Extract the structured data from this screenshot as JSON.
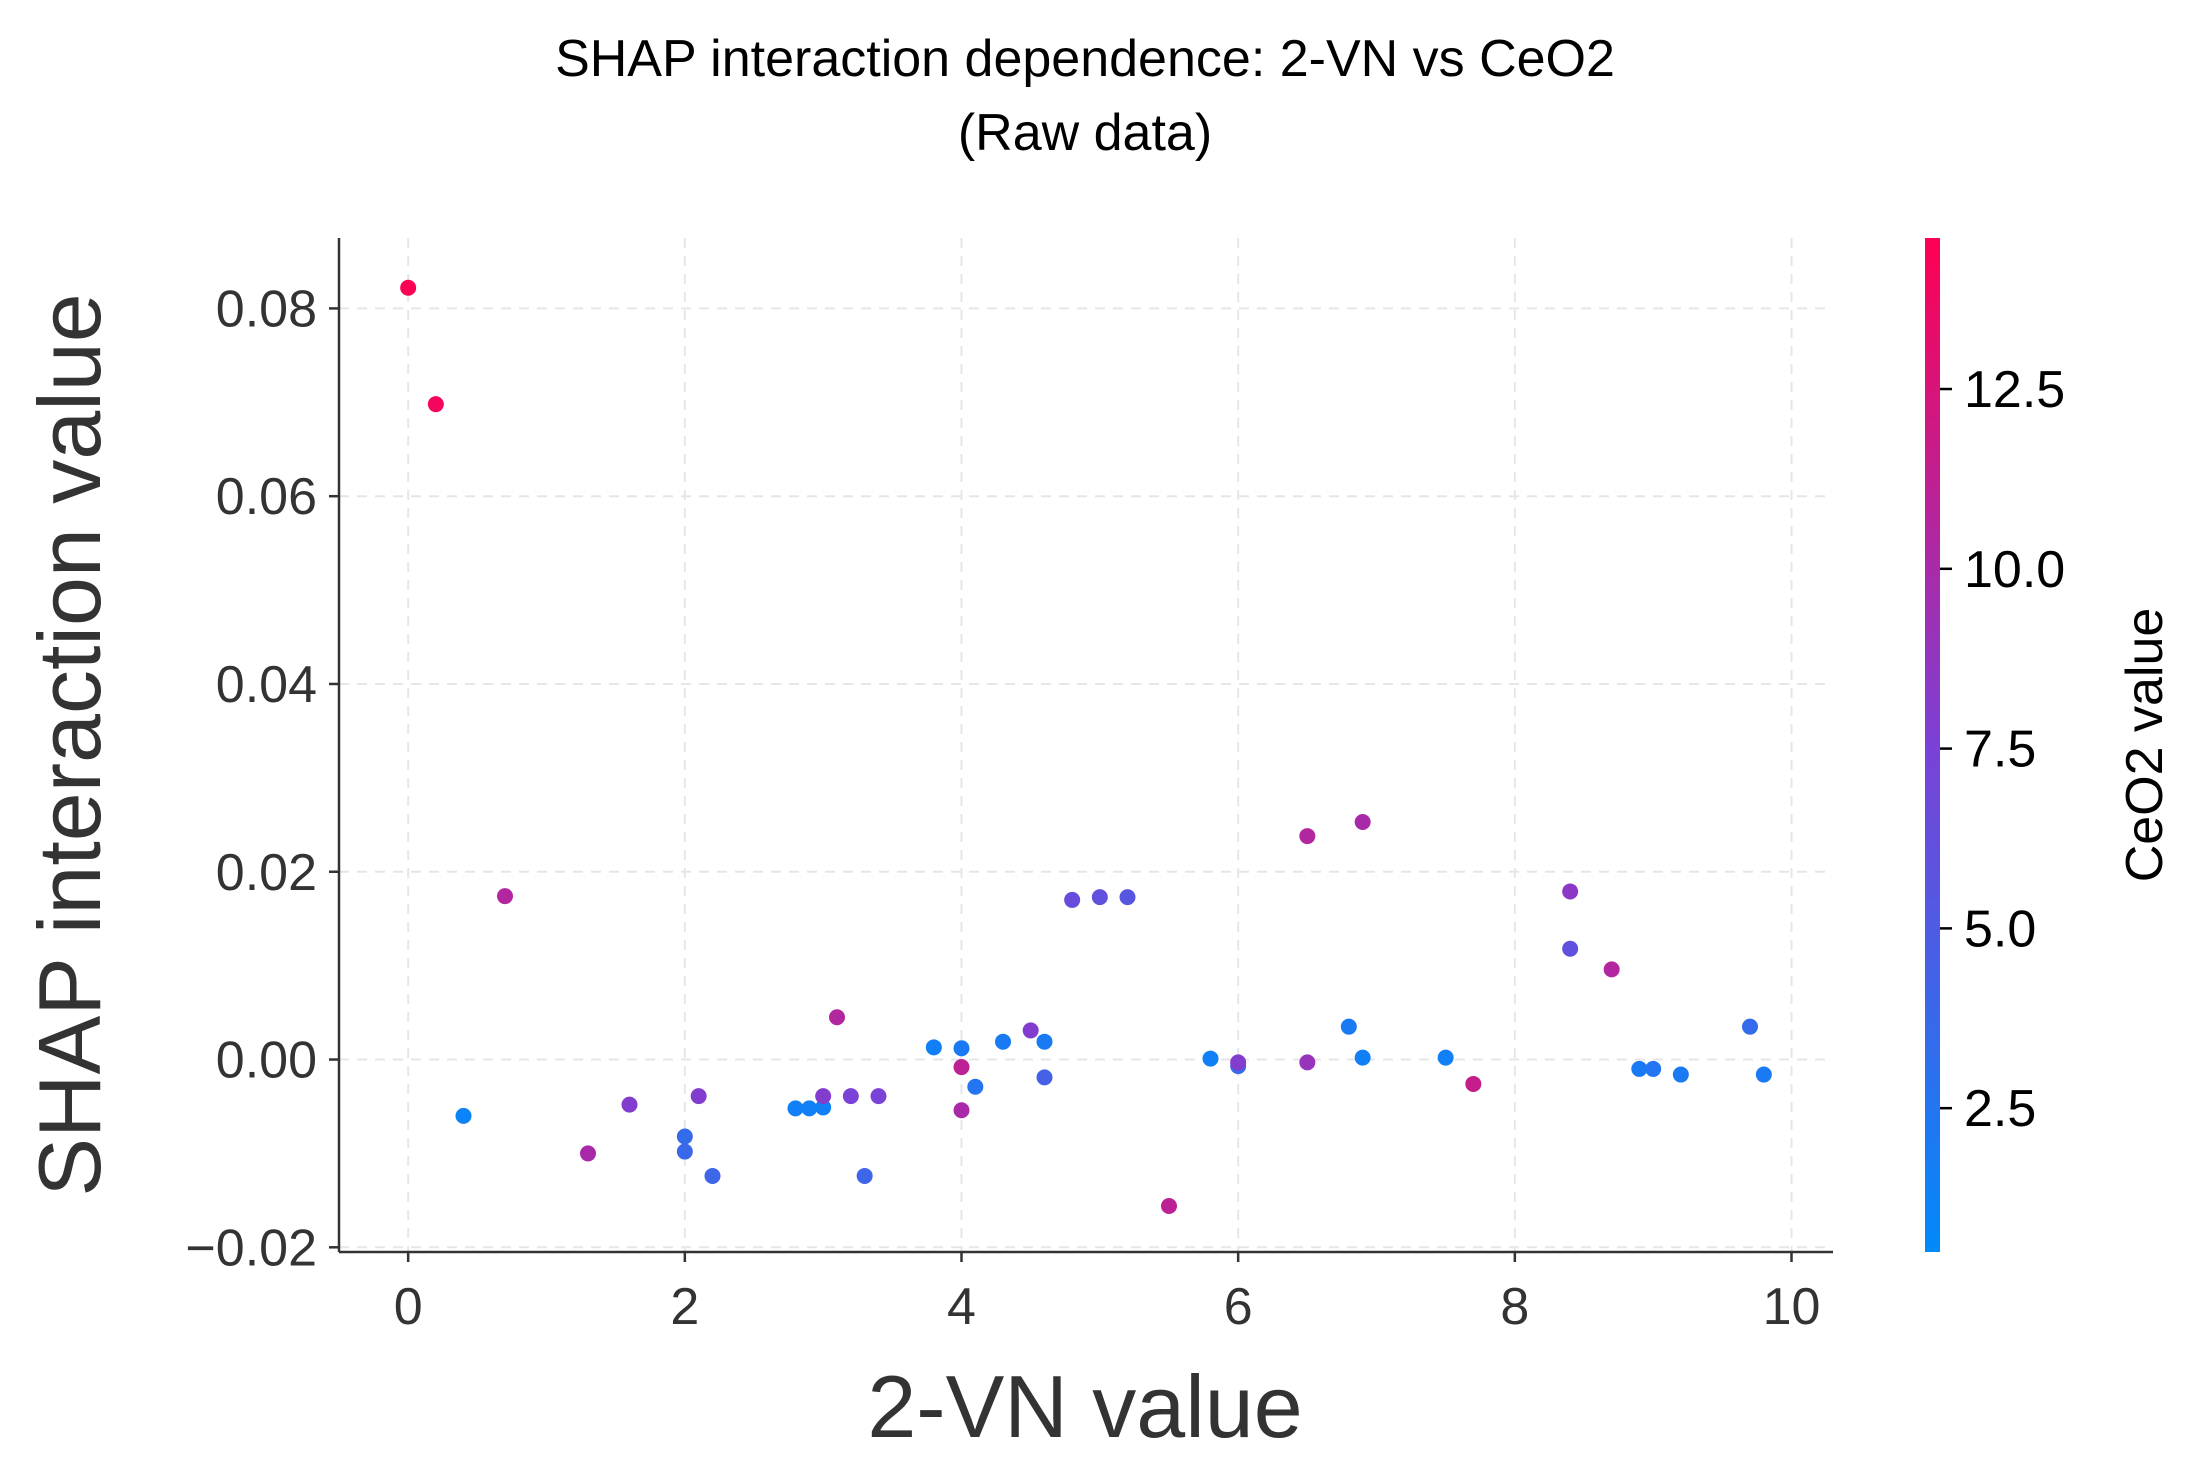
{
  "chart_data": {
    "type": "scatter",
    "title": "SHAP interaction dependence: 2-VN vs CeO2",
    "subtitle": "(Raw data)",
    "xlabel": "2-VN value",
    "ylabel": "SHAP interaction value",
    "xlim": [
      -0.5,
      10.3
    ],
    "ylim": [
      -0.0205,
      0.0875
    ],
    "xticks": [
      0,
      2,
      4,
      6,
      8,
      10
    ],
    "xtick_labels": [
      "0",
      "2",
      "4",
      "6",
      "8",
      "10"
    ],
    "yticks": [
      -0.02,
      0.0,
      0.02,
      0.04,
      0.06,
      0.08
    ],
    "ytick_labels": [
      "−0.02",
      "0.00",
      "0.02",
      "0.04",
      "0.06",
      "0.08"
    ],
    "grid": true,
    "colorbar": {
      "label": "CeO2 value",
      "range": [
        0.5,
        14.6
      ],
      "ticks": [
        2.5,
        5.0,
        7.5,
        10.0,
        12.5
      ],
      "tick_labels": [
        "2.5",
        "5.0",
        "7.5",
        "10.0",
        "12.5"
      ],
      "colors": [
        "#008afb",
        "#7b41d6",
        "#ff0052"
      ]
    },
    "points": [
      {
        "x": 0.0,
        "y": 0.0822,
        "c": 14.5
      },
      {
        "x": 0.2,
        "y": 0.0698,
        "c": 14.0
      },
      {
        "x": 0.4,
        "y": -0.006,
        "c": 1.2
      },
      {
        "x": 0.7,
        "y": 0.0174,
        "c": 10.5
      },
      {
        "x": 1.3,
        "y": -0.01,
        "c": 10.0
      },
      {
        "x": 1.6,
        "y": -0.0048,
        "c": 8.0
      },
      {
        "x": 2.0,
        "y": -0.0082,
        "c": 3.5
      },
      {
        "x": 2.0,
        "y": -0.0098,
        "c": 3.8
      },
      {
        "x": 2.1,
        "y": -0.0039,
        "c": 8.0
      },
      {
        "x": 2.2,
        "y": -0.0124,
        "c": 4.0
      },
      {
        "x": 2.8,
        "y": -0.0052,
        "c": 1.5
      },
      {
        "x": 2.9,
        "y": -0.0052,
        "c": 1.5
      },
      {
        "x": 3.0,
        "y": -0.0051,
        "c": 1.5
      },
      {
        "x": 3.0,
        "y": -0.0039,
        "c": 8.0
      },
      {
        "x": 3.1,
        "y": 0.0045,
        "c": 10.5
      },
      {
        "x": 3.2,
        "y": -0.0039,
        "c": 7.5
      },
      {
        "x": 3.3,
        "y": -0.0124,
        "c": 4.0
      },
      {
        "x": 3.4,
        "y": -0.0039,
        "c": 7.5
      },
      {
        "x": 3.8,
        "y": 0.0013,
        "c": 1.5
      },
      {
        "x": 4.0,
        "y": 0.0012,
        "c": 2.0
      },
      {
        "x": 4.0,
        "y": -0.0008,
        "c": 11.0
      },
      {
        "x": 4.0,
        "y": -0.0054,
        "c": 10.0
      },
      {
        "x": 4.1,
        "y": -0.0029,
        "c": 2.5
      },
      {
        "x": 4.3,
        "y": 0.0019,
        "c": 2.0
      },
      {
        "x": 4.5,
        "y": 0.0031,
        "c": 8.0
      },
      {
        "x": 4.6,
        "y": 0.0019,
        "c": 2.0
      },
      {
        "x": 4.6,
        "y": -0.0019,
        "c": 4.5
      },
      {
        "x": 4.8,
        "y": 0.017,
        "c": 6.5
      },
      {
        "x": 5.0,
        "y": 0.0173,
        "c": 6.0
      },
      {
        "x": 5.2,
        "y": 0.0173,
        "c": 5.5
      },
      {
        "x": 5.5,
        "y": -0.0156,
        "c": 11.0
      },
      {
        "x": 5.8,
        "y": 0.0001,
        "c": 1.5
      },
      {
        "x": 6.0,
        "y": -0.0007,
        "c": 4.0
      },
      {
        "x": 6.0,
        "y": -0.0003,
        "c": 8.0
      },
      {
        "x": 6.5,
        "y": 0.0238,
        "c": 10.5
      },
      {
        "x": 6.5,
        "y": -0.0003,
        "c": 9.0
      },
      {
        "x": 6.8,
        "y": 0.0035,
        "c": 2.0
      },
      {
        "x": 6.9,
        "y": 0.0253,
        "c": 10.0
      },
      {
        "x": 6.9,
        "y": 0.0002,
        "c": 1.5
      },
      {
        "x": 7.5,
        "y": 0.0002,
        "c": 1.5
      },
      {
        "x": 7.7,
        "y": -0.0026,
        "c": 11.5
      },
      {
        "x": 8.4,
        "y": 0.0179,
        "c": 8.5
      },
      {
        "x": 8.4,
        "y": 0.0118,
        "c": 6.0
      },
      {
        "x": 8.7,
        "y": 0.0096,
        "c": 10.5
      },
      {
        "x": 8.9,
        "y": -0.001,
        "c": 2.0
      },
      {
        "x": 9.0,
        "y": -0.001,
        "c": 2.5
      },
      {
        "x": 9.2,
        "y": -0.0016,
        "c": 2.0
      },
      {
        "x": 9.7,
        "y": 0.0035,
        "c": 3.5
      },
      {
        "x": 9.8,
        "y": -0.0016,
        "c": 2.0
      }
    ]
  }
}
